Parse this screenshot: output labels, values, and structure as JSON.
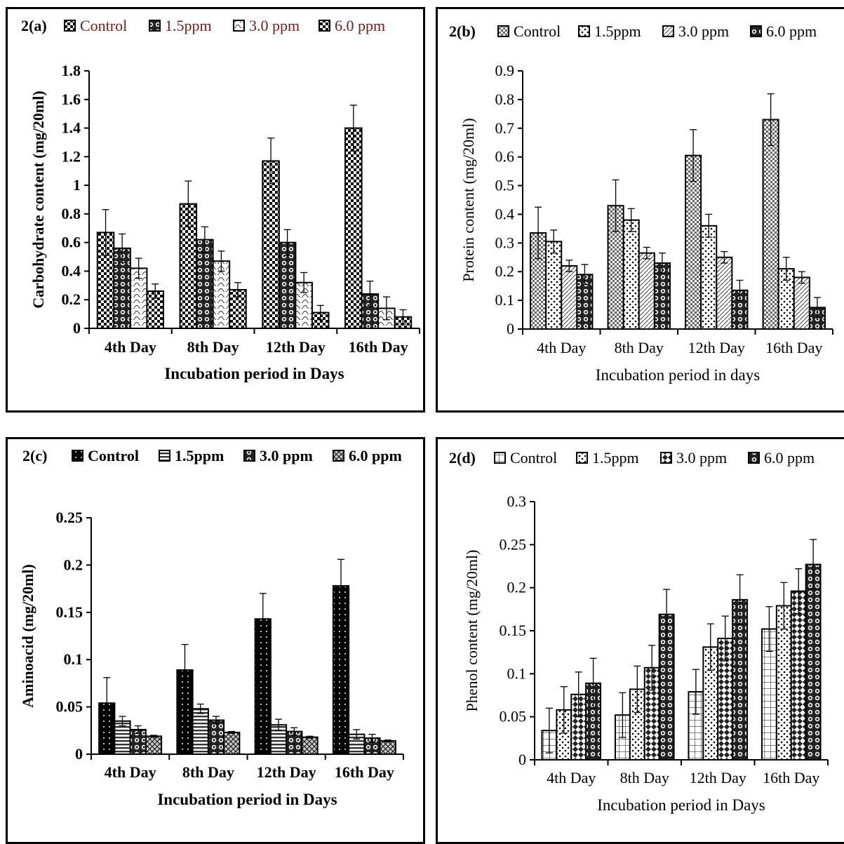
{
  "chart_data": [
    {
      "id": "a",
      "type": "bar",
      "panel_label": "2(a)",
      "title": "",
      "xlabel": "Incubation period in Days",
      "ylabel": "Carbohydrate content (mg/20ml)",
      "ylim": [
        0,
        1.8
      ],
      "yticks": [
        "0",
        "0.2",
        "0.4",
        "0.6",
        "0.8",
        "1",
        "1.2",
        "1.4",
        "1.6",
        "1.8"
      ],
      "categories": [
        "4th Day",
        "8th Day",
        "12th Day",
        "16th Day"
      ],
      "legend_position": "top",
      "legend_color": "#7a1a1a",
      "series": [
        {
          "name": "Control",
          "values": [
            0.67,
            0.87,
            1.17,
            1.4
          ],
          "errors": [
            0.16,
            0.16,
            0.16,
            0.16
          ]
        },
        {
          "name": "1.5ppm",
          "values": [
            0.56,
            0.62,
            0.6,
            0.24
          ],
          "errors": [
            0.1,
            0.09,
            0.09,
            0.09
          ]
        },
        {
          "name": "3.0 ppm",
          "values": [
            0.42,
            0.47,
            0.32,
            0.14
          ],
          "errors": [
            0.07,
            0.07,
            0.07,
            0.08
          ]
        },
        {
          "name": "6.0 ppm",
          "values": [
            0.26,
            0.27,
            0.11,
            0.08
          ],
          "errors": [
            0.05,
            0.05,
            0.05,
            0.05
          ]
        }
      ]
    },
    {
      "id": "b",
      "type": "bar",
      "panel_label": "2(b)",
      "title": "",
      "xlabel": "Incubation period in days",
      "ylabel": "Protein  content (mg/20ml)",
      "ylim": [
        0,
        0.9
      ],
      "yticks": [
        "0",
        "0.1",
        "0.2",
        "0.3",
        "0.4",
        "0.5",
        "0.6",
        "0.7",
        "0.8",
        "0.9"
      ],
      "categories": [
        "4th Day",
        "8th Day",
        "12th Day",
        "16th Day"
      ],
      "legend_position": "top",
      "legend_color": "#000000",
      "series": [
        {
          "name": "Control",
          "values": [
            0.335,
            0.43,
            0.605,
            0.73
          ],
          "errors": [
            0.09,
            0.09,
            0.09,
            0.09
          ]
        },
        {
          "name": "1.5ppm",
          "values": [
            0.305,
            0.38,
            0.36,
            0.21
          ],
          "errors": [
            0.04,
            0.04,
            0.04,
            0.04
          ]
        },
        {
          "name": "3.0 ppm",
          "values": [
            0.22,
            0.265,
            0.25,
            0.18
          ],
          "errors": [
            0.02,
            0.02,
            0.02,
            0.02
          ]
        },
        {
          "name": "6.0 ppm",
          "values": [
            0.19,
            0.23,
            0.135,
            0.075
          ],
          "errors": [
            0.035,
            0.035,
            0.035,
            0.035
          ]
        }
      ]
    },
    {
      "id": "c",
      "type": "bar",
      "panel_label": "2(c)",
      "title": "",
      "xlabel": "Incubation period in Days",
      "ylabel": "Aminoacid  (mg/20ml)",
      "ylim": [
        0,
        0.25
      ],
      "yticks": [
        "0",
        "0.05",
        "0.1",
        "0.15",
        "0.2",
        "0.25"
      ],
      "categories": [
        "4th Day",
        "8th Day",
        "12th Day",
        "16th Day"
      ],
      "legend_position": "top",
      "legend_color": "#000000",
      "series": [
        {
          "name": "Control",
          "values": [
            0.054,
            0.089,
            0.143,
            0.178
          ],
          "errors": [
            0.027,
            0.027,
            0.027,
            0.028
          ]
        },
        {
          "name": "1.5ppm",
          "values": [
            0.035,
            0.048,
            0.031,
            0.021
          ],
          "errors": [
            0.005,
            0.005,
            0.006,
            0.005
          ]
        },
        {
          "name": "3.0 ppm",
          "values": [
            0.026,
            0.036,
            0.024,
            0.017
          ],
          "errors": [
            0.004,
            0.004,
            0.004,
            0.004
          ]
        },
        {
          "name": "6.0 ppm",
          "values": [
            0.019,
            0.023,
            0.018,
            0.014
          ],
          "errors": [
            0.001,
            0.001,
            0.001,
            0.001
          ]
        }
      ]
    },
    {
      "id": "d",
      "type": "bar",
      "panel_label": "2(d)",
      "title": "",
      "xlabel": "Incubation period in Days",
      "ylabel": "Phenol  content (mg/20ml)",
      "ylim": [
        0,
        0.3
      ],
      "yticks": [
        "0",
        "0.05",
        "0.1",
        "0.15",
        "0.2",
        "0.25",
        "0.3"
      ],
      "categories": [
        "4th Day",
        "8th Day",
        "12th Day",
        "16th Day"
      ],
      "legend_position": "top",
      "legend_color": "#000000",
      "series": [
        {
          "name": "Control",
          "values": [
            0.034,
            0.052,
            0.079,
            0.152
          ],
          "errors": [
            0.026,
            0.026,
            0.026,
            0.026
          ]
        },
        {
          "name": "1.5ppm",
          "values": [
            0.058,
            0.082,
            0.131,
            0.179
          ],
          "errors": [
            0.027,
            0.027,
            0.027,
            0.027
          ]
        },
        {
          "name": "3.0 ppm",
          "values": [
            0.076,
            0.107,
            0.141,
            0.196
          ],
          "errors": [
            0.026,
            0.026,
            0.026,
            0.026
          ]
        },
        {
          "name": "6.0 ppm",
          "values": [
            0.089,
            0.169,
            0.186,
            0.227
          ],
          "errors": [
            0.029,
            0.029,
            0.029,
            0.029
          ]
        }
      ]
    }
  ]
}
